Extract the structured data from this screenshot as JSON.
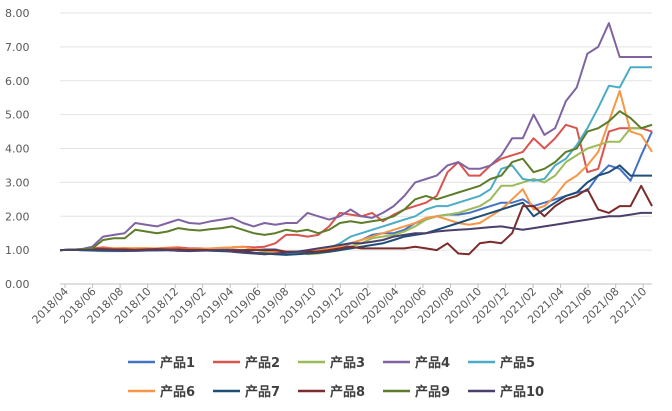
{
  "chart_data": {
    "type": "line",
    "title": "",
    "xlabel": "",
    "ylabel": "",
    "ylim": [
      0,
      8
    ],
    "yticks": [
      "0.00",
      "1.00",
      "2.00",
      "3.00",
      "4.00",
      "5.00",
      "6.00",
      "7.00",
      "8.00"
    ],
    "x_tick_labels": [
      "2018/04",
      "2018/06",
      "2018/08",
      "2018/10",
      "2018/12",
      "2019/02",
      "2019/04",
      "2019/06",
      "2019/08",
      "2019/10",
      "2019/12",
      "2020/02",
      "2020/04",
      "2020/06",
      "2020/08",
      "2020/10",
      "2020/12",
      "2021/02",
      "2021/04",
      "2021/06",
      "2021/08",
      "2021/10"
    ],
    "grid": "horizontal",
    "legend_position": "bottom",
    "series": [
      {
        "name": "产品1",
        "color": "#4472C4",
        "values": [
          1.0,
          1.01,
          1.02,
          1.0,
          0.99,
          0.98,
          0.98,
          0.98,
          0.99,
          0.99,
          1.0,
          1.0,
          1.01,
          1.02,
          1.02,
          1.01,
          1.01,
          1.0,
          1.01,
          1.02,
          1.02,
          0.95,
          0.95,
          0.96,
          0.98,
          1.0,
          1.02,
          1.2,
          1.3,
          1.45,
          1.5,
          1.5,
          1.6,
          1.8,
          1.9,
          2.0,
          2.05,
          2.05,
          2.1,
          2.2,
          2.3,
          2.4,
          2.4,
          2.5,
          2.3,
          2.4,
          2.5,
          2.6,
          2.7,
          2.75,
          3.2,
          3.5,
          3.4,
          3.05,
          3.8,
          4.5
        ]
      },
      {
        "name": "产品2",
        "color": "#D9534F",
        "values": [
          1.0,
          1.01,
          1.02,
          1.05,
          1.08,
          1.05,
          1.06,
          1.04,
          1.03,
          1.05,
          1.07,
          1.08,
          1.05,
          1.05,
          1.04,
          1.06,
          1.08,
          1.1,
          1.08,
          1.1,
          1.2,
          1.45,
          1.45,
          1.4,
          1.45,
          1.7,
          2.1,
          2.05,
          2.0,
          2.1,
          1.85,
          2.05,
          2.2,
          2.3,
          2.4,
          2.6,
          3.3,
          3.6,
          3.2,
          3.2,
          3.5,
          3.7,
          3.8,
          3.9,
          4.3,
          4.0,
          4.3,
          4.7,
          4.6,
          3.3,
          3.4,
          4.5,
          4.6,
          4.6,
          4.6,
          4.5
        ]
      },
      {
        "name": "产品3",
        "color": "#9BBB59",
        "values": [
          1.0,
          1.01,
          1.03,
          1.02,
          1.01,
          1.0,
          1.0,
          1.0,
          1.02,
          1.03,
          1.02,
          1.0,
          1.01,
          1.03,
          1.02,
          1.0,
          1.0,
          1.01,
          0.9,
          0.95,
          0.9,
          0.95,
          0.95,
          0.88,
          0.9,
          0.95,
          1.0,
          1.1,
          1.2,
          1.35,
          1.4,
          1.45,
          1.55,
          1.7,
          1.9,
          2.0,
          2.05,
          2.1,
          2.2,
          2.3,
          2.5,
          2.9,
          2.9,
          3.0,
          3.1,
          3.0,
          3.2,
          3.6,
          3.8,
          4.0,
          4.1,
          4.2,
          4.2,
          4.6,
          4.6,
          4.7
        ]
      },
      {
        "name": "产品4",
        "color": "#8064A2",
        "values": [
          1.0,
          1.01,
          1.03,
          1.1,
          1.4,
          1.45,
          1.5,
          1.8,
          1.75,
          1.7,
          1.8,
          1.9,
          1.8,
          1.78,
          1.85,
          1.9,
          1.95,
          1.8,
          1.7,
          1.8,
          1.75,
          1.8,
          1.8,
          2.1,
          2.0,
          1.9,
          2.0,
          2.2,
          2.0,
          1.95,
          2.1,
          2.3,
          2.6,
          3.0,
          3.1,
          3.2,
          3.5,
          3.6,
          3.4,
          3.4,
          3.5,
          3.8,
          4.3,
          4.3,
          5.0,
          4.4,
          4.6,
          5.4,
          5.8,
          6.8,
          7.0,
          7.7,
          6.7,
          6.7,
          6.7,
          6.7
        ]
      },
      {
        "name": "产品5",
        "color": "#4BACC6",
        "values": [
          1.0,
          1.01,
          1.0,
          0.98,
          0.97,
          0.97,
          0.97,
          0.98,
          0.99,
          1.0,
          1.01,
          1.02,
          1.01,
          1.0,
          1.01,
          1.02,
          1.0,
          1.0,
          0.92,
          0.88,
          0.9,
          0.92,
          0.92,
          0.95,
          0.96,
          1.05,
          1.2,
          1.4,
          1.5,
          1.6,
          1.7,
          1.8,
          1.9,
          2.0,
          2.2,
          2.3,
          2.3,
          2.4,
          2.5,
          2.6,
          2.8,
          3.4,
          3.5,
          3.1,
          3.05,
          3.1,
          3.5,
          3.7,
          4.1,
          4.6,
          5.2,
          5.85,
          5.8,
          6.4,
          6.4,
          6.4
        ]
      },
      {
        "name": "产品6",
        "color": "#F79646",
        "values": [
          1.0,
          1.01,
          1.02,
          1.03,
          1.04,
          1.05,
          1.05,
          1.06,
          1.06,
          1.05,
          1.05,
          1.04,
          1.03,
          1.04,
          1.05,
          1.07,
          1.08,
          1.1,
          1.02,
          1.0,
          0.96,
          0.95,
          0.95,
          0.96,
          1.0,
          1.05,
          1.1,
          1.2,
          1.3,
          1.4,
          1.5,
          1.6,
          1.7,
          1.8,
          1.95,
          2.0,
          1.9,
          1.8,
          1.75,
          1.8,
          2.0,
          2.2,
          2.5,
          2.8,
          2.2,
          2.3,
          2.6,
          3.0,
          3.2,
          3.5,
          3.9,
          4.8,
          5.7,
          4.5,
          4.4,
          3.9
        ]
      },
      {
        "name": "产品7",
        "color": "#1F4E79",
        "values": [
          1.0,
          1.01,
          1.0,
          1.0,
          0.99,
          0.98,
          0.98,
          0.99,
          1.0,
          1.0,
          1.0,
          0.98,
          0.99,
          1.0,
          0.98,
          0.97,
          0.96,
          0.98,
          0.92,
          0.9,
          0.88,
          0.86,
          0.88,
          0.9,
          0.92,
          0.95,
          1.0,
          1.05,
          1.1,
          1.15,
          1.2,
          1.3,
          1.4,
          1.45,
          1.5,
          1.6,
          1.7,
          1.8,
          1.9,
          2.0,
          2.1,
          2.2,
          2.3,
          2.4,
          2.0,
          2.2,
          2.4,
          2.6,
          2.7,
          3.0,
          3.2,
          3.3,
          3.5,
          3.2,
          3.2,
          3.2
        ]
      },
      {
        "name": "产品8",
        "color": "#7B2C2C",
        "values": [
          1.0,
          1.01,
          1.02,
          1.03,
          1.03,
          1.02,
          1.02,
          1.01,
          1.02,
          1.03,
          1.02,
          1.02,
          1.01,
          1.01,
          1.0,
          1.0,
          1.0,
          1.0,
          1.0,
          1.0,
          1.0,
          0.95,
          0.95,
          0.95,
          0.96,
          1.0,
          1.05,
          1.1,
          1.05,
          1.05,
          1.05,
          1.05,
          1.05,
          1.1,
          1.05,
          1.0,
          1.2,
          0.9,
          0.88,
          1.2,
          1.25,
          1.2,
          1.5,
          2.3,
          2.3,
          2.0,
          2.3,
          2.5,
          2.6,
          2.8,
          2.2,
          2.1,
          2.3,
          2.3,
          2.9,
          2.3
        ]
      },
      {
        "name": "产品9",
        "color": "#5E7D2A",
        "values": [
          1.0,
          1.01,
          1.03,
          1.05,
          1.3,
          1.35,
          1.35,
          1.6,
          1.55,
          1.5,
          1.55,
          1.65,
          1.6,
          1.58,
          1.62,
          1.65,
          1.7,
          1.6,
          1.5,
          1.45,
          1.5,
          1.6,
          1.55,
          1.6,
          1.5,
          1.6,
          1.8,
          1.85,
          1.8,
          1.85,
          1.9,
          2.0,
          2.2,
          2.5,
          2.6,
          2.5,
          2.6,
          2.7,
          2.8,
          2.9,
          3.1,
          3.2,
          3.6,
          3.7,
          3.3,
          3.4,
          3.6,
          3.9,
          4.0,
          4.5,
          4.6,
          4.8,
          5.1,
          4.9,
          4.6,
          4.7
        ]
      },
      {
        "name": "产品10",
        "color": "#4B3F6B",
        "values": [
          1.0,
          1.01,
          1.0,
          1.0,
          1.0,
          0.99,
          0.98,
          0.98,
          0.99,
          1.0,
          1.0,
          0.98,
          0.97,
          0.98,
          0.99,
          1.0,
          0.95,
          0.92,
          0.9,
          0.88,
          0.9,
          0.92,
          0.95,
          1.0,
          1.05,
          1.1,
          1.15,
          1.2,
          1.2,
          1.25,
          1.3,
          1.4,
          1.45,
          1.5,
          1.5,
          1.55,
          1.58,
          1.6,
          1.62,
          1.65,
          1.68,
          1.7,
          1.65,
          1.6,
          1.65,
          1.7,
          1.75,
          1.8,
          1.85,
          1.9,
          1.95,
          2.0,
          2.0,
          2.05,
          2.1,
          2.1
        ]
      }
    ]
  }
}
